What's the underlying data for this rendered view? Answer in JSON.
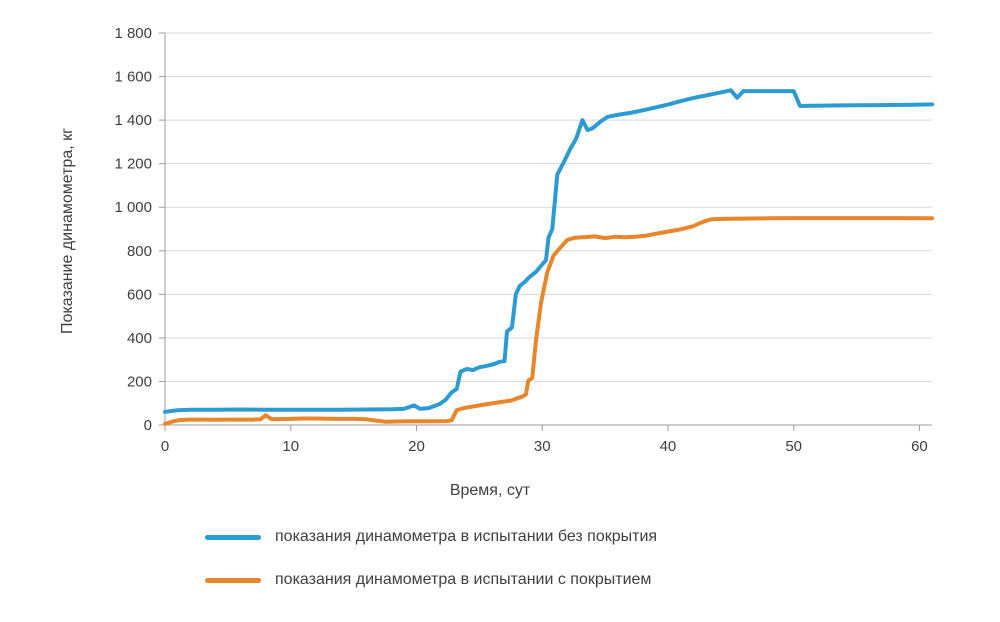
{
  "chart_data": {
    "type": "line",
    "title": "",
    "xlabel": "Время, сут",
    "ylabel": "Показание динамометра, кг",
    "xlim": [
      0,
      61
    ],
    "ylim": [
      0,
      1800
    ],
    "xticks": [
      0,
      10,
      20,
      30,
      40,
      50,
      60
    ],
    "yticks": [
      0,
      200,
      400,
      600,
      800,
      1000,
      1200,
      1400,
      1600,
      1800
    ],
    "grid": "horizontal",
    "legend_position": "bottom-left",
    "colors": {
      "grid": "#d9d9d9",
      "axis": "#9e9e9e",
      "text": "#404040"
    },
    "series": [
      {
        "name": "показания динамометра в испытании без покрытия",
        "color": "#2d9bd3",
        "points": [
          [
            0,
            60
          ],
          [
            1,
            68
          ],
          [
            2,
            70
          ],
          [
            4,
            70
          ],
          [
            6,
            71
          ],
          [
            8,
            70
          ],
          [
            10,
            70
          ],
          [
            12,
            70
          ],
          [
            14,
            70
          ],
          [
            16,
            71
          ],
          [
            18,
            72
          ],
          [
            19,
            74
          ],
          [
            19.8,
            90
          ],
          [
            20.3,
            74
          ],
          [
            21,
            78
          ],
          [
            21.8,
            95
          ],
          [
            22.3,
            115
          ],
          [
            22.8,
            150
          ],
          [
            23.2,
            165
          ],
          [
            23.5,
            245
          ],
          [
            24,
            257
          ],
          [
            24.5,
            252
          ],
          [
            25,
            265
          ],
          [
            25.6,
            272
          ],
          [
            26.2,
            280
          ],
          [
            26.6,
            290
          ],
          [
            27,
            293
          ],
          [
            27.2,
            430
          ],
          [
            27.6,
            448
          ],
          [
            27.9,
            600
          ],
          [
            28.2,
            638
          ],
          [
            28.6,
            656
          ],
          [
            29,
            680
          ],
          [
            29.5,
            703
          ],
          [
            30,
            737
          ],
          [
            30.3,
            757
          ],
          [
            30.5,
            860
          ],
          [
            30.8,
            900
          ],
          [
            31.2,
            1150
          ],
          [
            31.7,
            1205
          ],
          [
            32.2,
            1265
          ],
          [
            32.7,
            1315
          ],
          [
            33.2,
            1400
          ],
          [
            33.6,
            1355
          ],
          [
            34,
            1362
          ],
          [
            34.6,
            1392
          ],
          [
            35.2,
            1415
          ],
          [
            36,
            1424
          ],
          [
            37,
            1433
          ],
          [
            38,
            1445
          ],
          [
            39,
            1458
          ],
          [
            40,
            1471
          ],
          [
            41,
            1487
          ],
          [
            42,
            1501
          ],
          [
            43,
            1513
          ],
          [
            44,
            1525
          ],
          [
            45,
            1537
          ],
          [
            45.5,
            1503
          ],
          [
            46,
            1533
          ],
          [
            47,
            1533
          ],
          [
            48.5,
            1533
          ],
          [
            50,
            1533
          ],
          [
            50.5,
            1465
          ],
          [
            51.5,
            1466
          ],
          [
            53,
            1467
          ],
          [
            55,
            1468
          ],
          [
            57,
            1469
          ],
          [
            59,
            1470
          ],
          [
            61,
            1472
          ]
        ]
      },
      {
        "name": "показания динамометра в испытании с покрытием",
        "color": "#e8862c",
        "points": [
          [
            0,
            5
          ],
          [
            0.6,
            16
          ],
          [
            1.2,
            23
          ],
          [
            2,
            25
          ],
          [
            3,
            25
          ],
          [
            4,
            24
          ],
          [
            5,
            25
          ],
          [
            6,
            25
          ],
          [
            7,
            25
          ],
          [
            7.6,
            26
          ],
          [
            8,
            45
          ],
          [
            8.5,
            26
          ],
          [
            9,
            27
          ],
          [
            10,
            28
          ],
          [
            11,
            30
          ],
          [
            12,
            30
          ],
          [
            13,
            29
          ],
          [
            14,
            28
          ],
          [
            15,
            28
          ],
          [
            16,
            26
          ],
          [
            16.8,
            20
          ],
          [
            17.5,
            15
          ],
          [
            18.5,
            16
          ],
          [
            19.5,
            17
          ],
          [
            20.5,
            17
          ],
          [
            21.5,
            17
          ],
          [
            22.4,
            18
          ],
          [
            22.8,
            22
          ],
          [
            23.2,
            68
          ],
          [
            23.8,
            78
          ],
          [
            24.5,
            85
          ],
          [
            25.2,
            92
          ],
          [
            26,
            99
          ],
          [
            26.8,
            106
          ],
          [
            27.5,
            112
          ],
          [
            28,
            122
          ],
          [
            28.4,
            130
          ],
          [
            28.7,
            140
          ],
          [
            28.9,
            205
          ],
          [
            29.2,
            215
          ],
          [
            29.5,
            385
          ],
          [
            29.9,
            560
          ],
          [
            30.4,
            700
          ],
          [
            30.9,
            778
          ],
          [
            31.4,
            812
          ],
          [
            32,
            850
          ],
          [
            32.6,
            860
          ],
          [
            33.4,
            863
          ],
          [
            34.2,
            866
          ],
          [
            35,
            858
          ],
          [
            35.8,
            864
          ],
          [
            36.6,
            862
          ],
          [
            37.4,
            864
          ],
          [
            38.2,
            869
          ],
          [
            39,
            878
          ],
          [
            40,
            888
          ],
          [
            41,
            898
          ],
          [
            42,
            913
          ],
          [
            42.8,
            933
          ],
          [
            43.4,
            944
          ],
          [
            44,
            946
          ],
          [
            45,
            947
          ],
          [
            46.5,
            948
          ],
          [
            48,
            949
          ],
          [
            50,
            950
          ],
          [
            52,
            950
          ],
          [
            54,
            950
          ],
          [
            56,
            950
          ],
          [
            58,
            950
          ],
          [
            61,
            949
          ]
        ]
      }
    ]
  }
}
